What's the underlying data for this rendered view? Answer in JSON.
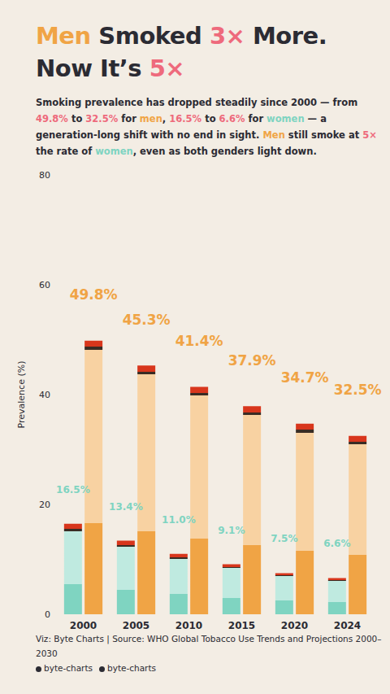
{
  "chart_data": {
    "type": "bar",
    "title": "Men Smoked 3× More.\nNow It’s 5×",
    "subtitle": "Smoking prevalence has dropped steadily since 2000 — from 49.8% to 32.5% for men, 16.5% to 6.6% for women — a generation-long shift with no end in sight. Men still smoke at 5× the rate of women, even as both genders light down.",
    "categories": [
      "2000",
      "2005",
      "2010",
      "2015",
      "2020",
      "2024"
    ],
    "series": [
      {
        "name": "women",
        "color": "#7fd4c1",
        "values": [
          16.5,
          13.4,
          11.0,
          9.1,
          7.5,
          6.6
        ],
        "value_labels": [
          "16.5%",
          "13.4%",
          "11.0%",
          "9.1%",
          "7.5%",
          "6.6%"
        ]
      },
      {
        "name": "men",
        "color": "#f0a445",
        "values": [
          49.8,
          45.3,
          41.4,
          37.9,
          34.7,
          32.5
        ],
        "value_labels": [
          "49.8%",
          "45.3%",
          "41.4%",
          "37.9%",
          "34.7%",
          "32.5%"
        ]
      }
    ],
    "ylabel": "Prevalence (%)",
    "ylim": [
      0,
      80
    ],
    "yticks": [
      0,
      20,
      40,
      60,
      80
    ],
    "grid": false,
    "data_labels": true,
    "source": "Viz: Byte Charts | Source: WHO Global Tobacco Use Trends and Projections 2000–2030",
    "credits": [
      "byte-charts",
      "byte-charts"
    ]
  }
}
